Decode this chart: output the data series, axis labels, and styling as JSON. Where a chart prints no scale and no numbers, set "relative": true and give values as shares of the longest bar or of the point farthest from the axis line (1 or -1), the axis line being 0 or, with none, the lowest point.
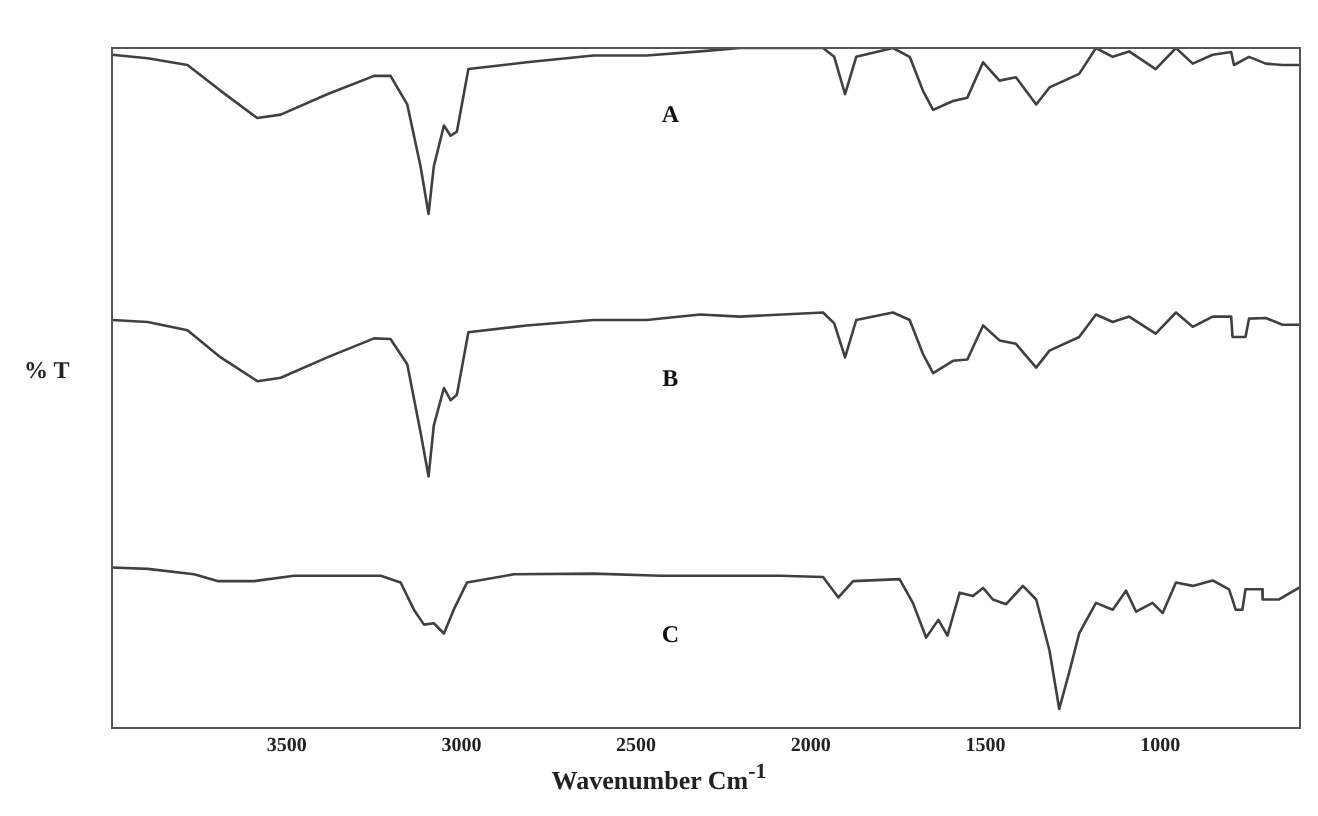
{
  "chart_data": {
    "type": "line",
    "xlabel": "Wavenumber Cm$^{-1}$",
    "ylabel": "% T",
    "relative": true,
    "legend": false,
    "grid": false,
    "marker": "none",
    "line_style": "solid",
    "xlim": [
      4000,
      600
    ],
    "xticks": [
      3500,
      3000,
      2500,
      2000,
      1500,
      1000
    ],
    "series": [
      {
        "name": "A",
        "color": "#404040",
        "x": [
          4000,
          3898,
          3784,
          3689,
          3584,
          3517,
          3384,
          3250,
          3203,
          3155,
          3117,
          3094,
          3079,
          3050,
          3031,
          3013,
          2980,
          2813,
          2622,
          2470,
          2317,
          2203,
          1965,
          1933,
          1902,
          1870,
          1765,
          1717,
          1679,
          1650,
          1593,
          1552,
          1507,
          1460,
          1413,
          1355,
          1317,
          1232,
          1184,
          1136,
          1089,
          1013,
          955,
          907,
          850,
          797,
          789,
          746,
          698,
          650,
          600
        ],
        "values": [
          0.99,
          0.985,
          0.975,
          0.937,
          0.897,
          0.902,
          0.932,
          0.959,
          0.959,
          0.917,
          0.826,
          0.756,
          0.826,
          0.886,
          0.871,
          0.877,
          0.969,
          0.979,
          0.989,
          0.989,
          0.995,
          1.0,
          1.0,
          0.987,
          0.932,
          0.987,
          1.0,
          0.987,
          0.937,
          0.909,
          0.922,
          0.927,
          0.979,
          0.952,
          0.957,
          0.917,
          0.942,
          0.962,
          1.0,
          0.987,
          0.995,
          0.969,
          1.0,
          0.977,
          0.99,
          0.994,
          0.975,
          0.987,
          0.977,
          0.975,
          0.975
        ]
      },
      {
        "name": "B",
        "color": "#404040",
        "x": [
          4000,
          3898,
          3784,
          3689,
          3584,
          3517,
          3384,
          3250,
          3203,
          3155,
          3117,
          3094,
          3079,
          3050,
          3031,
          3013,
          2980,
          2813,
          2622,
          2470,
          2317,
          2203,
          1965,
          1933,
          1902,
          1870,
          1765,
          1717,
          1679,
          1650,
          1593,
          1552,
          1507,
          1460,
          1413,
          1355,
          1317,
          1232,
          1184,
          1136,
          1089,
          1013,
          955,
          907,
          850,
          797,
          793,
          756,
          746,
          698,
          650,
          600
        ],
        "values": [
          0.6,
          0.597,
          0.585,
          0.545,
          0.51,
          0.515,
          0.545,
          0.573,
          0.572,
          0.535,
          0.435,
          0.37,
          0.445,
          0.5,
          0.482,
          0.49,
          0.582,
          0.592,
          0.6,
          0.6,
          0.608,
          0.605,
          0.611,
          0.595,
          0.545,
          0.6,
          0.611,
          0.6,
          0.55,
          0.522,
          0.54,
          0.542,
          0.592,
          0.57,
          0.565,
          0.53,
          0.555,
          0.575,
          0.608,
          0.597,
          0.605,
          0.58,
          0.611,
          0.59,
          0.605,
          0.605,
          0.575,
          0.575,
          0.602,
          0.603,
          0.593,
          0.593
        ]
      },
      {
        "name": "C",
        "color": "#404040",
        "x": [
          4000,
          3898,
          3765,
          3698,
          3593,
          3479,
          3231,
          3174,
          3136,
          3107,
          3079,
          3050,
          3022,
          2984,
          2850,
          2622,
          2431,
          2089,
          1965,
          1921,
          1879,
          1746,
          1708,
          1670,
          1635,
          1609,
          1574,
          1536,
          1507,
          1479,
          1441,
          1393,
          1355,
          1317,
          1289,
          1260,
          1232,
          1184,
          1136,
          1098,
          1069,
          1022,
          993,
          955,
          907,
          850,
          803,
          784,
          765,
          756,
          708,
          707,
          660,
          600
        ],
        "values": [
          0.236,
          0.234,
          0.226,
          0.216,
          0.216,
          0.224,
          0.224,
          0.214,
          0.174,
          0.152,
          0.154,
          0.139,
          0.174,
          0.214,
          0.226,
          0.227,
          0.224,
          0.224,
          0.222,
          0.192,
          0.216,
          0.219,
          0.184,
          0.133,
          0.159,
          0.136,
          0.199,
          0.194,
          0.206,
          0.189,
          0.182,
          0.209,
          0.189,
          0.114,
          0.028,
          0.083,
          0.139,
          0.184,
          0.174,
          0.202,
          0.171,
          0.184,
          0.169,
          0.214,
          0.209,
          0.217,
          0.204,
          0.174,
          0.174,
          0.204,
          0.204,
          0.189,
          0.189,
          0.207
        ]
      }
    ]
  }
}
